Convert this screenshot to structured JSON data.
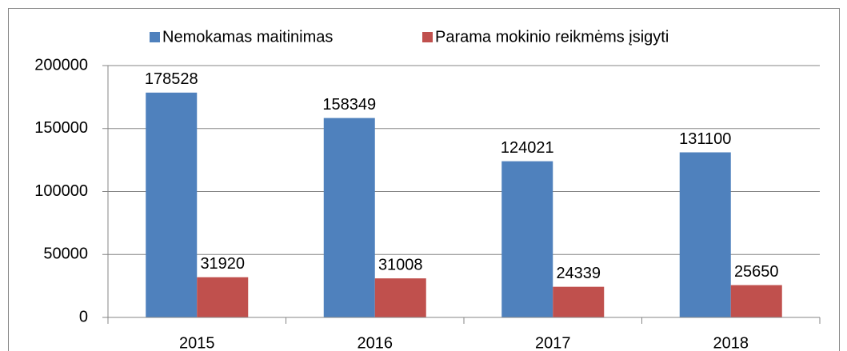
{
  "chart_data": {
    "type": "bar",
    "categories": [
      "2015",
      "2016",
      "2017",
      "2018"
    ],
    "series": [
      {
        "name": "Nemokamas maitinimas",
        "color": "#4f81bd",
        "values": [
          178528,
          158349,
          124021,
          131100
        ]
      },
      {
        "name": "Parama mokinio reikmėms įsigyti",
        "color": "#c0504d",
        "values": [
          31920,
          31008,
          24339,
          25650
        ]
      }
    ],
    "ylim": [
      0,
      200000
    ],
    "yticks": [
      0,
      50000,
      100000,
      150000,
      200000
    ],
    "grid": true,
    "legend": "top"
  }
}
